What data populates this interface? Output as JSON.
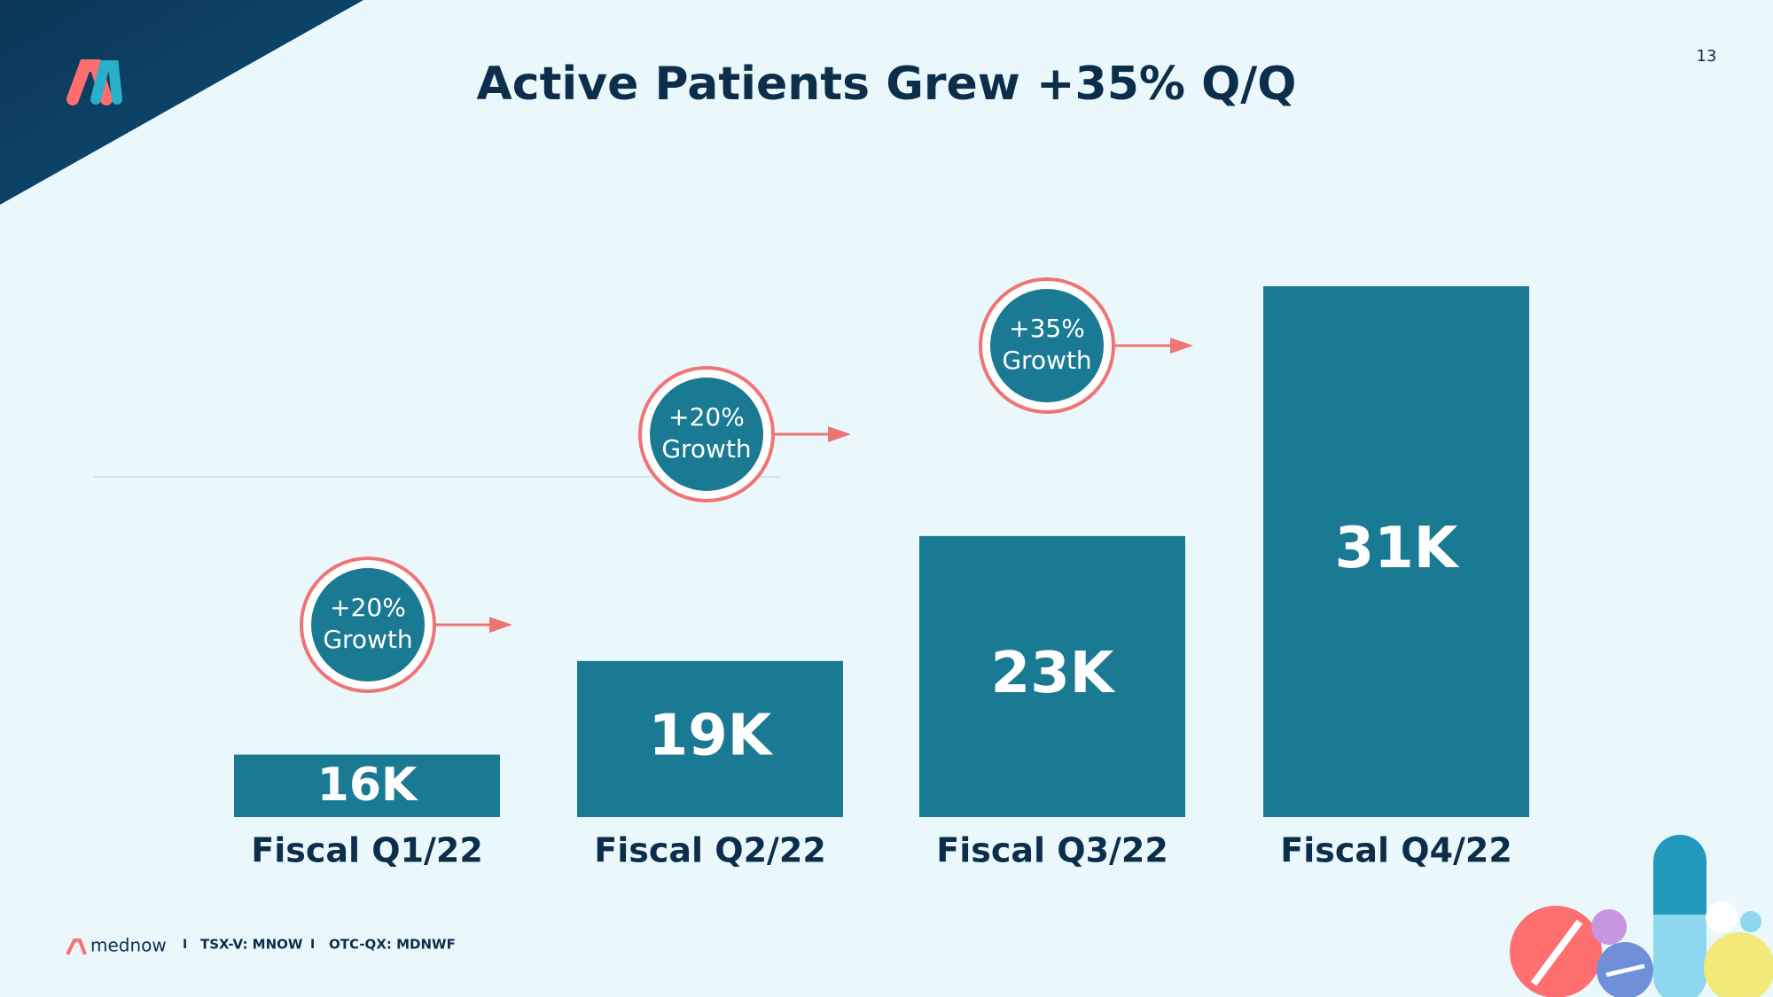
{
  "page_number": "13",
  "footer": {
    "brand": "mednow",
    "separator": "I",
    "tsx": "TSX-V: MNOW",
    "otc": "OTC-QX: MDNWF"
  },
  "chart_data": {
    "type": "bar",
    "title": "Active Patients Grew +35%  Q/Q",
    "categories": [
      "Fiscal Q1/22",
      "Fiscal Q2/22",
      "Fiscal Q3/22",
      "Fiscal Q4/22"
    ],
    "values": [
      16000,
      19000,
      23000,
      31000
    ],
    "value_labels": [
      "16K",
      "19K",
      "23K",
      "31K"
    ],
    "color": "#1b7a93",
    "ylim": [
      14000,
      31000
    ],
    "annotations": [
      [
        "+20%",
        "Growth"
      ],
      [
        "+20%",
        "Growth"
      ],
      [
        "+35%",
        "Growth"
      ]
    ]
  }
}
